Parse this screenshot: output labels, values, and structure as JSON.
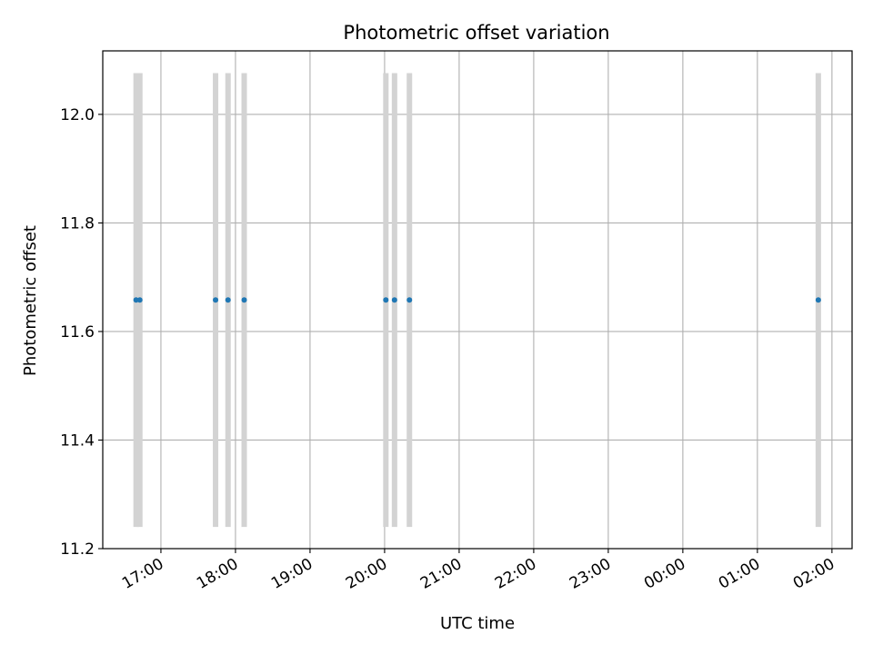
{
  "chart_data": {
    "type": "scatter",
    "title": "Photometric offset variation",
    "xlabel": "UTC time",
    "ylabel": "Photometric offset",
    "x_tick_labels": [
      "17:00",
      "18:00",
      "19:00",
      "20:00",
      "21:00",
      "22:00",
      "23:00",
      "00:00",
      "01:00",
      "02:00"
    ],
    "y_tick_labels": [
      "11.2",
      "11.4",
      "11.6",
      "11.8",
      "12.0"
    ],
    "x_ticks_hours": [
      17,
      18,
      19,
      20,
      21,
      22,
      23,
      24,
      25,
      26
    ],
    "y_ticks": [
      11.2,
      11.4,
      11.6,
      11.8,
      12.0
    ],
    "xlim_hours": [
      16.22,
      26.27
    ],
    "ylim": [
      11.2,
      12.117
    ],
    "grid": true,
    "points": [
      {
        "time": "16:40",
        "t": 16.667,
        "value": 11.658,
        "error": 0.418
      },
      {
        "time": "16:43",
        "t": 16.717,
        "value": 11.658,
        "error": 0.418
      },
      {
        "time": "17:44",
        "t": 17.733,
        "value": 11.658,
        "error": 0.418
      },
      {
        "time": "17:54",
        "t": 17.9,
        "value": 11.658,
        "error": 0.418
      },
      {
        "time": "18:07",
        "t": 18.117,
        "value": 11.658,
        "error": 0.418
      },
      {
        "time": "20:01",
        "t": 20.017,
        "value": 11.658,
        "error": 0.418
      },
      {
        "time": "20:08",
        "t": 20.133,
        "value": 11.658,
        "error": 0.418
      },
      {
        "time": "20:20",
        "t": 20.333,
        "value": 11.658,
        "error": 0.418
      },
      {
        "time": "01:49",
        "t": 25.817,
        "value": 11.658,
        "error": 0.418
      }
    ],
    "colors": {
      "point": "#1f77b4",
      "errorbar": "#d3d3d3",
      "grid": "#b0b0b0",
      "axes": "#000000"
    }
  }
}
